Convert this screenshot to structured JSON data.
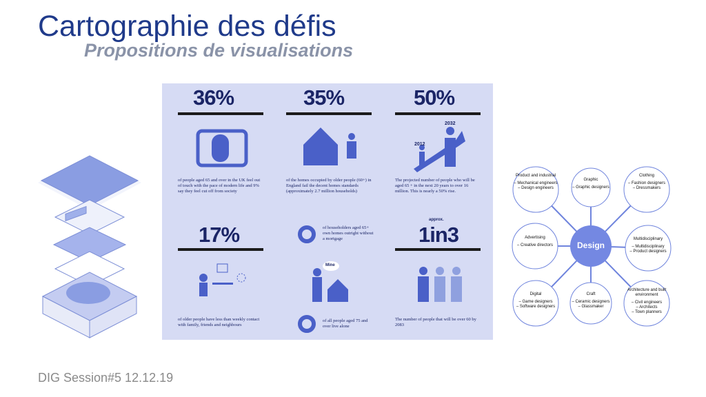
{
  "title": "Cartographie des défis",
  "subtitle": "Propositions de visualisations",
  "footer": "DIG Session#5 12.12.19",
  "infographic": {
    "cells": [
      {
        "figure": "36%",
        "text": "of people aged 65 and over in the UK feel out of touch with the pace of modern life and 9% say they feel cut off from society"
      },
      {
        "figure": "35%",
        "text": "of the homes occupied by older people (60+) in England fail the decent homes standards (approximately 2.7 million households)"
      },
      {
        "figure": "50%",
        "text": "The projected number of people who will be aged 65 + in the next 20 years to over 16 million. This is nearly a 50% rise."
      },
      {
        "figure": "17%",
        "text": "of older people have less than weekly contact with family, friends and neighbours"
      },
      {
        "figure": "1in3",
        "text": "The number of people that will be over 60 by 2083"
      }
    ],
    "donut_texts": [
      "of householders aged 65+ own homes outright without a mortgage",
      "of all people aged 75 and over live alone"
    ],
    "chart_labels": [
      "2012",
      "2032"
    ],
    "bubble": "Mine",
    "approx": "approx."
  },
  "diagram": {
    "center": "Design",
    "nodes": [
      {
        "label": "Product and industrial",
        "items": [
          "– Mechanical engineers",
          "– Design engineers"
        ]
      },
      {
        "label": "Graphic",
        "items": [
          "– Graphic designers"
        ]
      },
      {
        "label": "Clothing",
        "items": [
          "– Fashion designers",
          "– Dressmakers"
        ]
      },
      {
        "label": "Advertising",
        "items": [
          "– Creative directors"
        ]
      },
      {
        "label": "Multidisciplinary",
        "items": [
          "– Multidisciplinary",
          "– Product designers"
        ]
      },
      {
        "label": "Digital",
        "items": [
          "– Game designers",
          "– Software designers"
        ]
      },
      {
        "label": "Craft",
        "items": [
          "– Ceramic designers",
          "– Glassmaker"
        ]
      },
      {
        "label": "Architecture and built environment",
        "items": [
          "– Civil engineers",
          "– Architects",
          "– Town planners"
        ]
      }
    ]
  }
}
